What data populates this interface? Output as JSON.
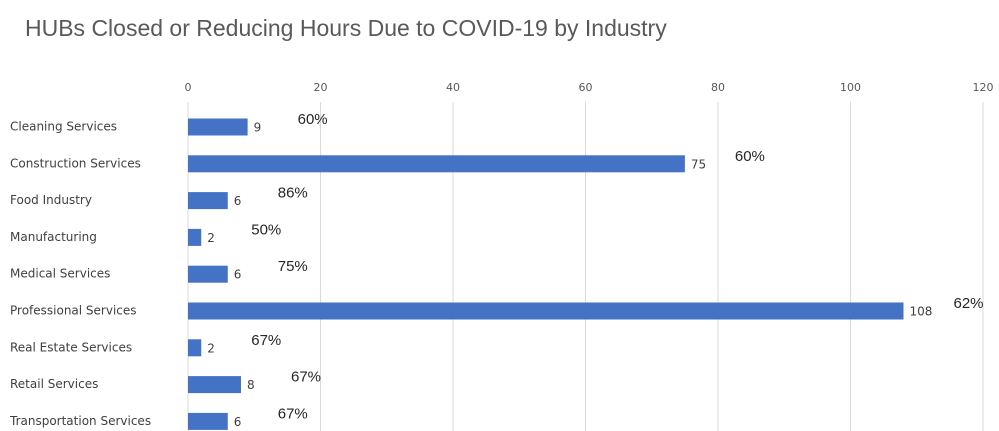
{
  "chart_data": {
    "type": "bar",
    "orientation": "horizontal",
    "title": "HUBs Closed or Reducing Hours Due to COVID-19 by Industry",
    "categories": [
      "Cleaning Services",
      "Construction Services",
      "Food Industry",
      "Manufacturing",
      "Medical Services",
      "Professional Services",
      "Real Estate Services",
      "Retail Services",
      "Transportation Services"
    ],
    "values": [
      9,
      75,
      6,
      2,
      6,
      108,
      2,
      8,
      6
    ],
    "annotations": [
      "60%",
      "60%",
      "86%",
      "50%",
      "75%",
      "62%",
      "67%",
      "67%",
      "67%"
    ],
    "color": "#4472c4",
    "xlim": [
      0,
      120
    ],
    "xticks": [
      0,
      20,
      40,
      60,
      80,
      100,
      120
    ],
    "grid": true
  }
}
